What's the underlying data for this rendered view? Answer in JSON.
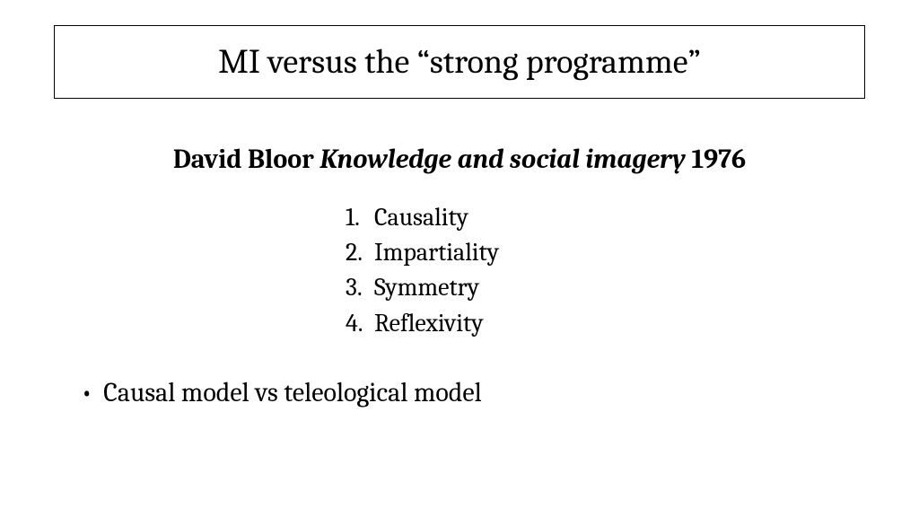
{
  "slide": {
    "title": "MI versus the “strong programme”",
    "subtitle": {
      "author": "David Bloor",
      "book": "Knowledge and social imagery",
      "year": "1976"
    },
    "numbered_items": [
      {
        "num": "1.",
        "text": "Causality"
      },
      {
        "num": "2.",
        "text": "Impartiality"
      },
      {
        "num": "3.",
        "text": "Symmetry"
      },
      {
        "num": "4.",
        "text": "Reflexivity"
      }
    ],
    "bullet": "Causal model vs teleological model",
    "colors": {
      "background": "#ffffff",
      "text": "#000000",
      "border": "#000000"
    },
    "fonts": {
      "title_size": 38,
      "subtitle_size": 30,
      "list_size": 28,
      "bullet_size": 30
    }
  }
}
